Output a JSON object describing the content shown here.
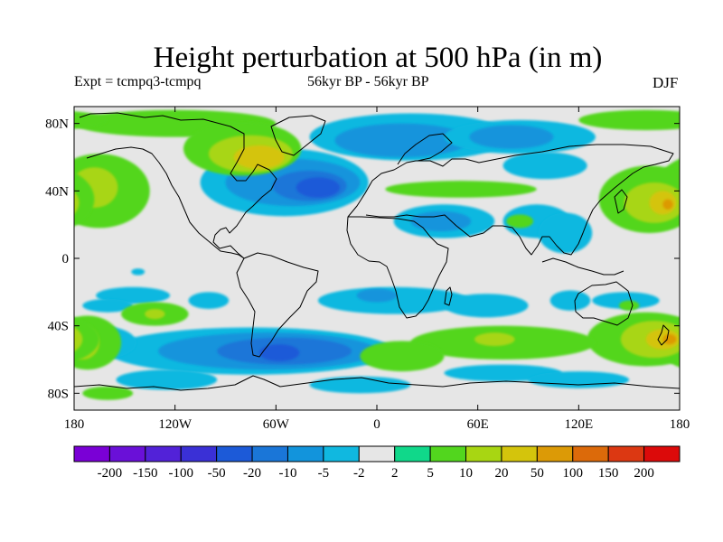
{
  "title": "Height perturbation at 500 hPa (in m)",
  "subtitle_left": "Expt = tcmpq3-tcmpq",
  "subtitle_center": "56kyr BP - 56kyr BP",
  "subtitle_right": "DJF",
  "map": {
    "lon_range": [
      -180,
      180
    ],
    "lat_range": [
      -90,
      90
    ],
    "background_color": "#e6e6e6",
    "lat_ticks": [
      {
        "lat": 80,
        "label": "80N"
      },
      {
        "lat": 40,
        "label": "40N"
      },
      {
        "lat": 0,
        "label": "0"
      },
      {
        "lat": -40,
        "label": "40S"
      },
      {
        "lat": -80,
        "label": "80S"
      }
    ],
    "lon_ticks": [
      {
        "lon": -180,
        "label": "180"
      },
      {
        "lon": -120,
        "label": "120W"
      },
      {
        "lon": -60,
        "label": "60W"
      },
      {
        "lon": 0,
        "label": "0"
      },
      {
        "lon": 60,
        "label": "60E"
      },
      {
        "lon": 120,
        "label": "120E"
      },
      {
        "lon": 180,
        "label": "180"
      }
    ],
    "contour_regions": [
      {
        "level": 5,
        "lon": -120,
        "lat": 80,
        "rlon": 60,
        "rlat": 8
      },
      {
        "level": 5,
        "lon": 160,
        "lat": 82,
        "rlon": 40,
        "rlat": 6
      },
      {
        "level": 5,
        "lon": -165,
        "lat": 40,
        "rlon": 30,
        "rlat": 22
      },
      {
        "level": 10,
        "lon": -168,
        "lat": 42,
        "rlon": 14,
        "rlat": 12
      },
      {
        "level": 5,
        "lon": 162,
        "lat": 35,
        "rlon": 30,
        "rlat": 20
      },
      {
        "level": 10,
        "lon": 165,
        "lat": 33,
        "rlon": 18,
        "rlat": 12
      },
      {
        "level": 20,
        "lon": 170,
        "lat": 33,
        "rlon": 8,
        "rlat": 7
      },
      {
        "level": 50,
        "lon": 173,
        "lat": 32,
        "rlon": 3,
        "rlat": 3
      },
      {
        "level": -2,
        "lon": -55,
        "lat": 45,
        "rlon": 50,
        "rlat": 20
      },
      {
        "level": -5,
        "lon": -50,
        "lat": 45,
        "rlon": 40,
        "rlat": 14
      },
      {
        "level": -10,
        "lon": -40,
        "lat": 43,
        "rlon": 22,
        "rlat": 9
      },
      {
        "level": -20,
        "lon": -35,
        "lat": 42,
        "rlon": 13,
        "rlat": 6
      },
      {
        "level": -2,
        "lon": 20,
        "lat": 72,
        "rlon": 60,
        "rlat": 14
      },
      {
        "level": -5,
        "lon": 15,
        "lat": 70,
        "rlon": 40,
        "rlat": 10
      },
      {
        "level": -2,
        "lon": 85,
        "lat": 72,
        "rlon": 45,
        "rlat": 10
      },
      {
        "level": -5,
        "lon": 80,
        "lat": 72,
        "rlon": 25,
        "rlat": 7
      },
      {
        "level": 5,
        "lon": -80,
        "lat": 65,
        "rlon": 35,
        "rlat": 16
      },
      {
        "level": 10,
        "lon": -75,
        "lat": 62,
        "rlon": 25,
        "rlat": 11
      },
      {
        "level": 20,
        "lon": -70,
        "lat": 60,
        "rlon": 15,
        "rlat": 7
      },
      {
        "level": 5,
        "lon": 50,
        "lat": 41,
        "rlon": 45,
        "rlat": 5
      },
      {
        "level": -2,
        "lon": 40,
        "lat": 22,
        "rlon": 30,
        "rlat": 10
      },
      {
        "level": -5,
        "lon": 38,
        "lat": 22,
        "rlon": 18,
        "rlat": 6
      },
      {
        "level": -2,
        "lon": 95,
        "lat": 22,
        "rlon": 20,
        "rlat": 10
      },
      {
        "level": 5,
        "lon": 85,
        "lat": 22,
        "rlon": 8,
        "rlat": 4
      },
      {
        "level": -2,
        "lon": 100,
        "lat": 55,
        "rlon": 25,
        "rlat": 8
      },
      {
        "level": -2,
        "lon": 112,
        "lat": 15,
        "rlon": 16,
        "rlat": 12
      },
      {
        "level": -2,
        "lon": -142,
        "lat": -8,
        "rlon": 4,
        "rlat": 2
      },
      {
        "level": -2,
        "lon": -145,
        "lat": -22,
        "rlon": 22,
        "rlat": 5
      },
      {
        "level": -2,
        "lon": -160,
        "lat": -28,
        "rlon": 15,
        "rlat": 4
      },
      {
        "level": -2,
        "lon": -100,
        "lat": -25,
        "rlon": 12,
        "rlat": 5
      },
      {
        "level": 5,
        "lon": -132,
        "lat": -33,
        "rlon": 20,
        "rlat": 7
      },
      {
        "level": 10,
        "lon": -132,
        "lat": -33,
        "rlon": 6,
        "rlat": 3
      },
      {
        "level": -2,
        "lon": -75,
        "lat": -55,
        "rlon": 85,
        "rlat": 14
      },
      {
        "level": -5,
        "lon": -65,
        "lat": -55,
        "rlon": 65,
        "rlat": 11
      },
      {
        "level": -10,
        "lon": -55,
        "lat": -55,
        "rlon": 40,
        "rlat": 8
      },
      {
        "level": -20,
        "lon": -58,
        "lat": -56,
        "rlon": 12,
        "rlat": 5
      },
      {
        "level": -2,
        "lon": -165,
        "lat": -50,
        "rlon": 22,
        "rlat": 10
      },
      {
        "level": 5,
        "lon": -172,
        "lat": -50,
        "rlon": 20,
        "rlat": 16
      },
      {
        "level": 10,
        "lon": -175,
        "lat": -50,
        "rlon": 10,
        "rlat": 10
      },
      {
        "level": 20,
        "lon": -177,
        "lat": -50,
        "rlon": 5,
        "rlat": 5
      },
      {
        "level": 5,
        "lon": 160,
        "lat": -48,
        "rlon": 35,
        "rlat": 16
      },
      {
        "level": 10,
        "lon": 165,
        "lat": -48,
        "rlon": 20,
        "rlat": 11
      },
      {
        "level": 20,
        "lon": 170,
        "lat": -48,
        "rlon": 10,
        "rlat": 6
      },
      {
        "level": 50,
        "lon": 174,
        "lat": -48,
        "rlon": 4,
        "rlat": 3
      },
      {
        "level": -2,
        "lon": 10,
        "lat": -25,
        "rlon": 45,
        "rlat": 8
      },
      {
        "level": -5,
        "lon": 0,
        "lat": -22,
        "rlon": 12,
        "rlat": 4
      },
      {
        "level": -2,
        "lon": 65,
        "lat": -28,
        "rlon": 25,
        "rlat": 7
      },
      {
        "level": -2,
        "lon": 75,
        "lat": -68,
        "rlon": 35,
        "rlat": 5
      },
      {
        "level": -2,
        "lon": 115,
        "lat": -25,
        "rlon": 12,
        "rlat": 6
      },
      {
        "level": -2,
        "lon": 148,
        "lat": -25,
        "rlon": 20,
        "rlat": 5
      },
      {
        "level": 5,
        "lon": 150,
        "lat": -28,
        "rlon": 6,
        "rlat": 3
      },
      {
        "level": 5,
        "lon": 75,
        "lat": -50,
        "rlon": 55,
        "rlat": 10
      },
      {
        "level": 10,
        "lon": 70,
        "lat": -48,
        "rlon": 12,
        "rlat": 4
      },
      {
        "level": 5,
        "lon": 15,
        "lat": -58,
        "rlon": 25,
        "rlat": 9
      },
      {
        "level": -2,
        "lon": -125,
        "lat": -72,
        "rlon": 30,
        "rlat": 6
      },
      {
        "level": -2,
        "lon": 120,
        "lat": -72,
        "rlon": 30,
        "rlat": 5
      },
      {
        "level": -2,
        "lon": -10,
        "lat": -75,
        "rlon": 30,
        "rlat": 5
      },
      {
        "level": 5,
        "lon": -160,
        "lat": -80,
        "rlon": 15,
        "rlat": 4
      }
    ]
  },
  "colorbar": {
    "levels": [
      -200,
      -150,
      -100,
      -50,
      -20,
      -10,
      -5,
      -2,
      2,
      5,
      10,
      20,
      50,
      100,
      150,
      200
    ],
    "labels": [
      "-200",
      "-150",
      "-100",
      "-50",
      "-20",
      "-10",
      "-5",
      "-2",
      "2",
      "5",
      "10",
      "20",
      "50",
      "100",
      "150",
      "200"
    ],
    "colors": [
      "#7a00d6",
      "#6a10d8",
      "#5222d8",
      "#3a30d6",
      "#1c5ad8",
      "#1a76d8",
      "#1294dc",
      "#10b8e0",
      "#e6e6e6",
      "#10d88a",
      "#52d61e",
      "#a8d612",
      "#d4c40c",
      "#dc9a06",
      "#dc6a0a",
      "#dc3812",
      "#dc0a0a"
    ]
  }
}
